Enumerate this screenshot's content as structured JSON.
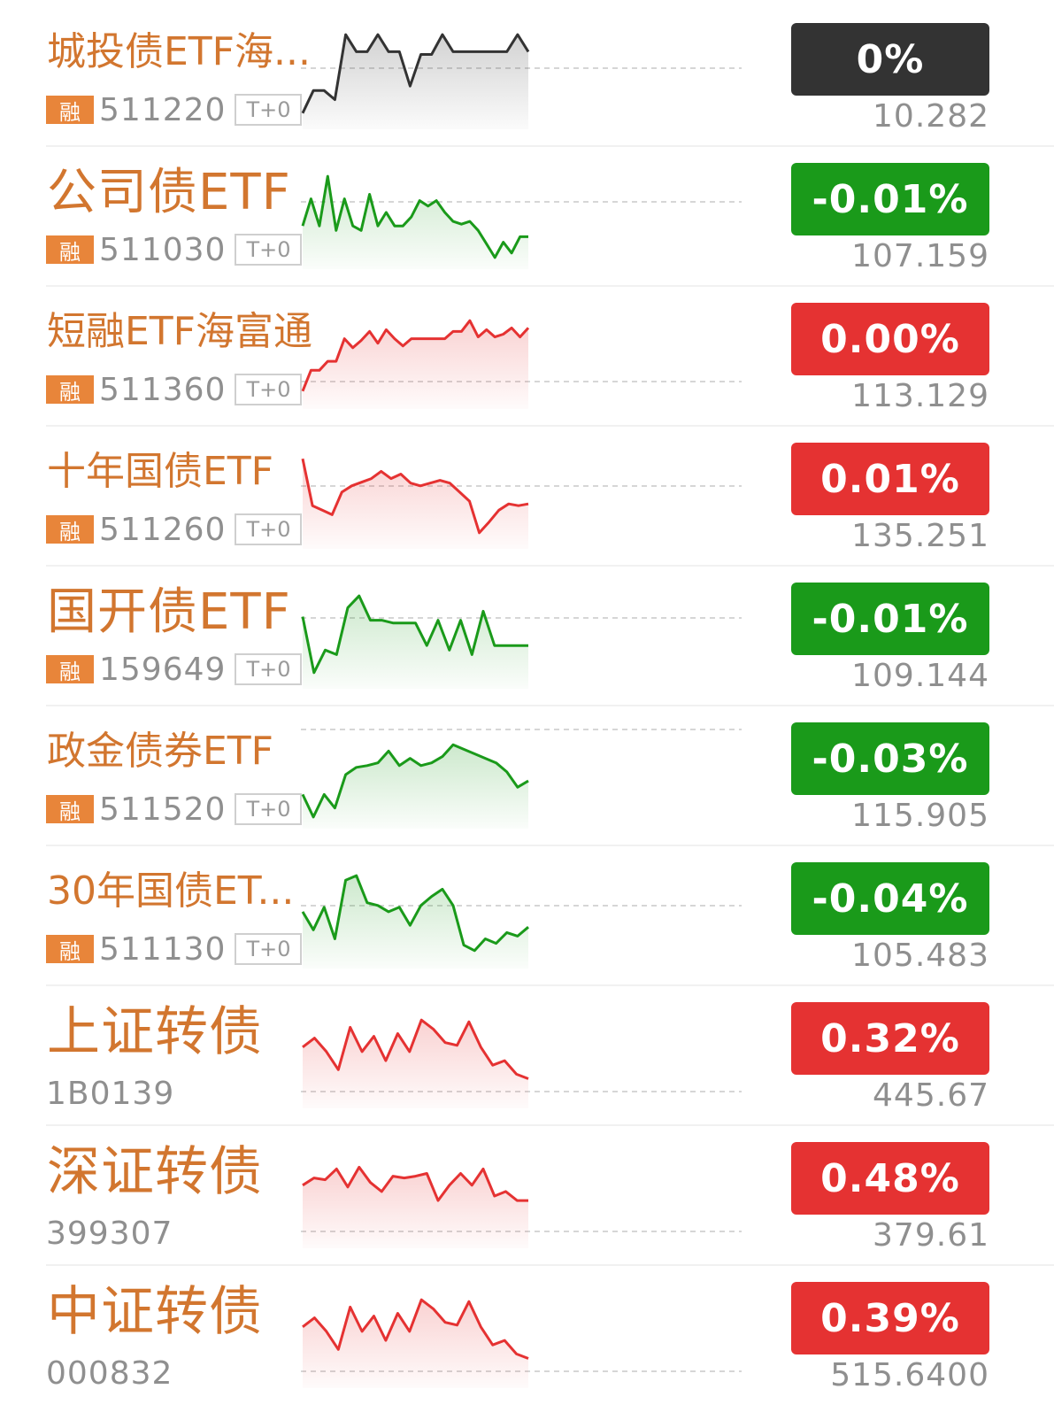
{
  "colors": {
    "up": "#e53232",
    "down": "#1a9a1a",
    "flat": "#333333",
    "name": "#d2762f",
    "muted": "#8f8f8f",
    "rong_bg": "#e8853a"
  },
  "rows": [
    {
      "name": "城投债ETF海...",
      "rong": "融",
      "code": "511220",
      "t0": "T+0",
      "change": "0%",
      "price": "10.282",
      "trend": "flat",
      "spark": [
        0.1,
        0.35,
        0.35,
        0.25,
        0.97,
        0.78,
        0.78,
        0.97,
        0.78,
        0.78,
        0.4,
        0.75,
        0.75,
        0.97,
        0.78,
        0.78,
        0.78,
        0.78,
        0.78,
        0.78,
        0.97,
        0.78
      ]
    },
    {
      "name": "公司债ETF",
      "rong": "融",
      "code": "511030",
      "t0": "T+0",
      "change": "-0.01%",
      "price": "107.159",
      "trend": "down",
      "spark": [
        0.4,
        0.7,
        0.4,
        0.95,
        0.35,
        0.7,
        0.4,
        0.35,
        0.75,
        0.4,
        0.55,
        0.4,
        0.4,
        0.5,
        0.68,
        0.62,
        0.68,
        0.55,
        0.45,
        0.42,
        0.45,
        0.35,
        0.2,
        0.05,
        0.22,
        0.1,
        0.28,
        0.28
      ]
    },
    {
      "name": "短融ETF海富通",
      "rong": "融",
      "code": "511360",
      "t0": "T+0",
      "change": "0.00%",
      "price": "113.129",
      "trend": "up",
      "spark": [
        0.12,
        0.35,
        0.35,
        0.45,
        0.45,
        0.7,
        0.6,
        0.68,
        0.78,
        0.65,
        0.8,
        0.7,
        0.62,
        0.7,
        0.7,
        0.7,
        0.7,
        0.7,
        0.78,
        0.78,
        0.9,
        0.72,
        0.8,
        0.72,
        0.75,
        0.82,
        0.72,
        0.82
      ]
    },
    {
      "name": "十年国债ETF",
      "rong": "融",
      "code": "511260",
      "t0": "T+0",
      "change": "0.01%",
      "price": "135.251",
      "trend": "up",
      "spark": [
        0.92,
        0.4,
        0.35,
        0.3,
        0.55,
        0.62,
        0.66,
        0.7,
        0.78,
        0.7,
        0.75,
        0.65,
        0.62,
        0.65,
        0.68,
        0.65,
        0.55,
        0.45,
        0.1,
        0.22,
        0.35,
        0.42,
        0.4,
        0.42
      ]
    },
    {
      "name": "国开债ETF",
      "rong": "融",
      "code": "159649",
      "t0": "T+0",
      "change": "-0.01%",
      "price": "109.144",
      "trend": "down",
      "spark": [
        0.72,
        0.1,
        0.35,
        0.3,
        0.82,
        0.95,
        0.68,
        0.68,
        0.65,
        0.65,
        0.65,
        0.4,
        0.68,
        0.35,
        0.68,
        0.3,
        0.78,
        0.4,
        0.4,
        0.4,
        0.4
      ]
    },
    {
      "name": "政金债券ETF",
      "rong": "融",
      "code": "511520",
      "t0": "T+0",
      "change": "-0.03%",
      "price": "115.905",
      "trend": "down",
      "spark": [
        0.3,
        0.05,
        0.3,
        0.15,
        0.52,
        0.6,
        0.62,
        0.65,
        0.78,
        0.62,
        0.7,
        0.62,
        0.65,
        0.72,
        0.85,
        0.8,
        0.75,
        0.7,
        0.65,
        0.55,
        0.38,
        0.45
      ]
    },
    {
      "name": "30年国债ET...",
      "rong": "融",
      "code": "511130",
      "t0": "T+0",
      "change": "-0.04%",
      "price": "105.483",
      "trend": "down",
      "spark": [
        0.55,
        0.35,
        0.6,
        0.25,
        0.9,
        0.95,
        0.65,
        0.62,
        0.55,
        0.6,
        0.4,
        0.62,
        0.72,
        0.8,
        0.62,
        0.18,
        0.12,
        0.25,
        0.2,
        0.32,
        0.28,
        0.38
      ]
    },
    {
      "name": "上证转债",
      "rong": "",
      "code": "1B0139",
      "t0": "",
      "change": "0.32%",
      "price": "445.67",
      "trend": "up",
      "spark": [
        0.6,
        0.7,
        0.55,
        0.35,
        0.82,
        0.55,
        0.72,
        0.45,
        0.75,
        0.55,
        0.9,
        0.8,
        0.65,
        0.62,
        0.88,
        0.6,
        0.4,
        0.45,
        0.3,
        0.25
      ]
    },
    {
      "name": "深证转债",
      "rong": "",
      "code": "399307",
      "t0": "",
      "change": "0.48%",
      "price": "379.61",
      "trend": "up",
      "spark": [
        0.62,
        0.7,
        0.68,
        0.8,
        0.6,
        0.82,
        0.65,
        0.55,
        0.72,
        0.7,
        0.72,
        0.75,
        0.45,
        0.62,
        0.75,
        0.62,
        0.8,
        0.5,
        0.55,
        0.45,
        0.45
      ]
    },
    {
      "name": "中证转债",
      "rong": "",
      "code": "000832",
      "t0": "",
      "change": "0.39%",
      "price": "515.6400",
      "trend": "up",
      "spark": [
        0.6,
        0.7,
        0.55,
        0.35,
        0.82,
        0.55,
        0.72,
        0.45,
        0.75,
        0.55,
        0.9,
        0.8,
        0.65,
        0.62,
        0.88,
        0.6,
        0.4,
        0.45,
        0.3,
        0.25
      ]
    }
  ]
}
